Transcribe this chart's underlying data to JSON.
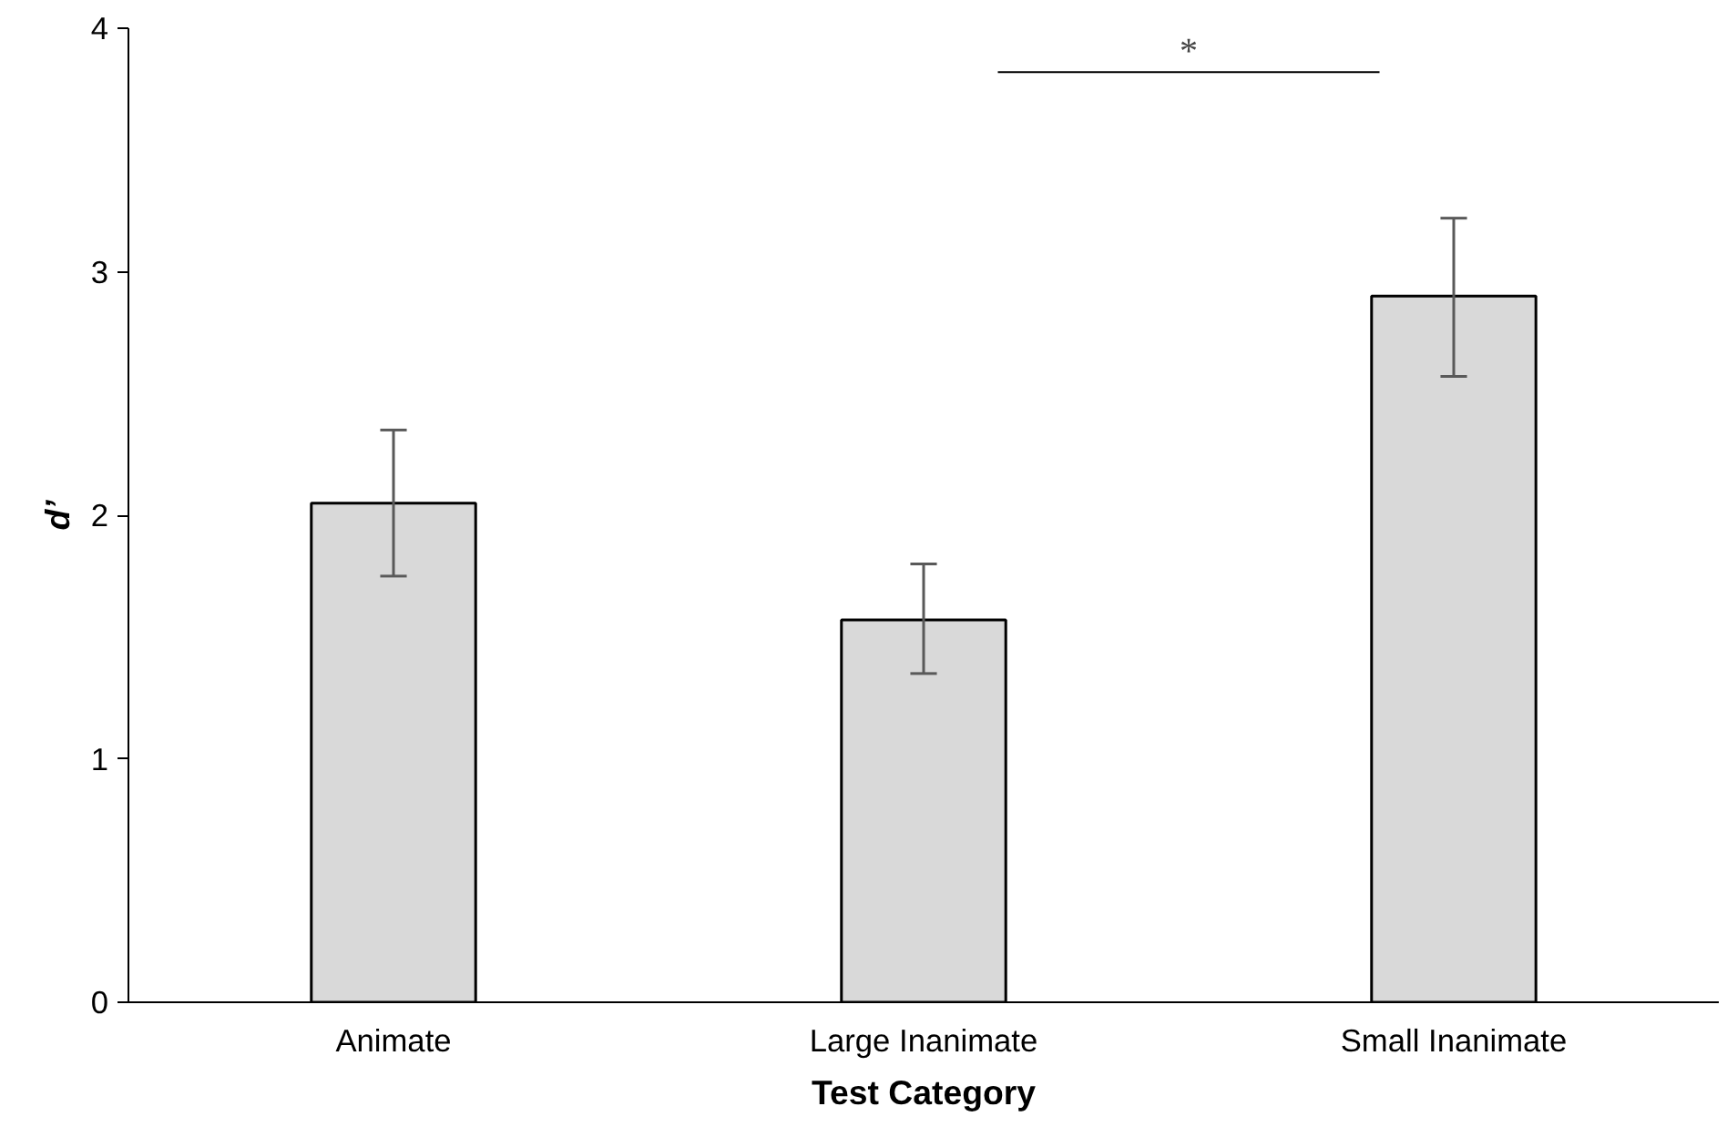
{
  "chart_data": {
    "type": "bar",
    "xlabel": "Test Category",
    "ylabel": "d’",
    "categories": [
      "Animate",
      "Large Inanimate",
      "Small Inanimate"
    ],
    "values": [
      2.05,
      1.57,
      2.9
    ],
    "errors": [
      [
        1.75,
        2.35
      ],
      [
        1.35,
        1.8
      ],
      [
        2.57,
        3.22
      ]
    ],
    "color": "#d9d9d9",
    "ylim": [
      0,
      4
    ],
    "yticks": [
      0,
      1,
      2,
      3,
      4
    ],
    "grid": false,
    "annotations": [
      "*"
    ]
  }
}
